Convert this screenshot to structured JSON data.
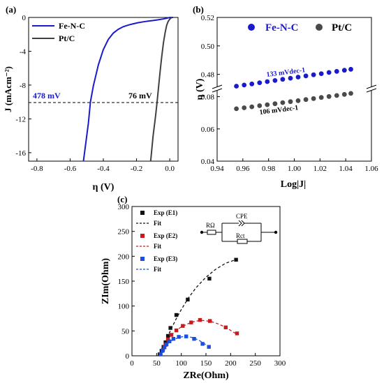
{
  "chart_data": [
    {
      "panel_label": "(a)",
      "type": "line",
      "xlabel": "η (V)",
      "ylabel": "J (mAcm⁻²)",
      "xlim": [
        -0.85,
        0.05
      ],
      "ylim": [
        -17,
        0
      ],
      "xticks": [
        "-0.8",
        "-0.6",
        "-0.4",
        "-0.2",
        "0.0"
      ],
      "xtick_values": [
        -0.8,
        -0.6,
        -0.4,
        -0.2,
        0.0
      ],
      "yticks": [
        "0",
        "-4",
        "-8",
        "-12",
        "-16"
      ],
      "ytick_values": [
        0,
        -4,
        -8,
        -12,
        -16
      ],
      "reference_line": {
        "y": -10,
        "style": "dashed"
      },
      "annotations": [
        {
          "text": "478 mV",
          "color": "#1a1acc"
        },
        {
          "text": "76 mV",
          "color": "#000000"
        }
      ],
      "legend_position": "top-left",
      "series": [
        {
          "name": "Fe-N-C",
          "color": "#1a1acc",
          "x": [
            -0.52,
            -0.49,
            -0.478,
            -0.46,
            -0.43,
            -0.4,
            -0.37,
            -0.34,
            -0.31,
            -0.28,
            -0.25,
            -0.22,
            -0.19,
            -0.16,
            -0.13,
            -0.1,
            -0.07,
            -0.04,
            -0.02,
            0.0,
            0.02
          ],
          "y": [
            -17,
            -12.5,
            -10,
            -8.1,
            -5.6,
            -3.8,
            -2.6,
            -1.85,
            -1.4,
            -1.1,
            -0.9,
            -0.75,
            -0.62,
            -0.52,
            -0.43,
            -0.36,
            -0.28,
            -0.18,
            -0.1,
            0.0,
            0.0
          ]
        },
        {
          "name": "Pt/C",
          "color": "#404040",
          "x": [
            -0.115,
            -0.1,
            -0.085,
            -0.076,
            -0.068,
            -0.058,
            -0.048,
            -0.038,
            -0.028,
            -0.018,
            -0.01,
            0.0,
            0.008,
            0.015
          ],
          "y": [
            -17,
            -14.0,
            -11.6,
            -10,
            -8.4,
            -6.4,
            -4.6,
            -3.0,
            -1.8,
            -0.9,
            -0.5,
            -0.2,
            -0.05,
            0.0
          ]
        }
      ]
    },
    {
      "panel_label": "(b)",
      "type": "scatter",
      "xlabel": "Log|J|",
      "ylabel": "η (V)",
      "xlim": [
        0.94,
        1.06
      ],
      "xticks": [
        "0.94",
        "0.96",
        "0.98",
        "1.00",
        "1.02",
        "1.04",
        "1.06"
      ],
      "xtick_values": [
        0.94,
        0.96,
        0.98,
        1.0,
        1.02,
        1.04,
        1.06
      ],
      "y_axis_break": true,
      "yticks_upper": [
        "0.48",
        "0.50",
        "0.52"
      ],
      "ytick_values_upper": [
        0.48,
        0.5,
        0.52
      ],
      "yticks_lower": [
        "0.04",
        "0.06",
        "0.08"
      ],
      "ytick_values_lower": [
        0.04,
        0.06,
        0.08
      ],
      "legend_position": "top",
      "series": [
        {
          "name": "Fe-N-C",
          "color": "#1a1acc",
          "slope_label": "133 mVdec-1",
          "x": [
            0.955,
            0.961,
            0.967,
            0.973,
            0.979,
            0.985,
            0.991,
            0.997,
            1.003,
            1.009,
            1.015,
            1.021,
            1.027,
            1.033,
            1.039,
            1.044
          ],
          "y": [
            0.4717,
            0.4725,
            0.4733,
            0.4741,
            0.4749,
            0.4757,
            0.4765,
            0.4773,
            0.4781,
            0.4789,
            0.4797,
            0.4805,
            0.4813,
            0.4821,
            0.4829,
            0.4836
          ]
        },
        {
          "name": "Pt/C",
          "color": "#4a4a4a",
          "slope_label": "106 mVdec-1",
          "x": [
            0.955,
            0.961,
            0.967,
            0.973,
            0.979,
            0.985,
            0.991,
            0.997,
            1.003,
            1.009,
            1.015,
            1.021,
            1.027,
            1.033,
            1.039,
            1.044
          ],
          "y": [
            0.0725,
            0.0731,
            0.0737,
            0.0744,
            0.075,
            0.0756,
            0.0763,
            0.0769,
            0.0775,
            0.0782,
            0.0788,
            0.0795,
            0.0801,
            0.0807,
            0.0814,
            0.082
          ]
        }
      ]
    },
    {
      "panel_label": "(c)",
      "type": "scatter",
      "xlabel": "ZRe(Ohm)",
      "ylabel": "ZIm(Ohm)",
      "xlim": [
        0,
        300
      ],
      "ylim": [
        0,
        300
      ],
      "xticks": [
        "0",
        "50",
        "100",
        "150",
        "200",
        "250",
        "300"
      ],
      "xtick_values": [
        0,
        50,
        100,
        150,
        200,
        250,
        300
      ],
      "yticks": [
        "0",
        "50",
        "100",
        "150",
        "200",
        "250",
        "300"
      ],
      "ytick_values": [
        0,
        50,
        100,
        150,
        200,
        250,
        300
      ],
      "legend_position": "top-left",
      "circuit_labels": {
        "r1": "RΩ",
        "cpe": "CPE",
        "r2": "Rct"
      },
      "series": [
        {
          "name": "Exp (E1)",
          "color": "#111111",
          "marker": "square",
          "x": [
            56,
            60,
            64,
            68,
            73,
            78,
            90,
            113,
            157,
            211
          ],
          "y": [
            3,
            10,
            18,
            27,
            40,
            56,
            82,
            113,
            155,
            193
          ],
          "fit_name": "Fit",
          "fit_x": [
            55,
            58,
            62,
            66,
            70,
            75,
            80,
            90,
            100,
            115,
            130,
            150,
            170,
            190,
            210
          ],
          "fit_y": [
            0,
            6,
            14,
            23,
            32,
            44,
            55,
            75,
            93,
            117,
            137,
            158,
            174,
            186,
            193
          ]
        },
        {
          "name": "Exp (E2)",
          "color": "#cc1a1a",
          "marker": "square",
          "x": [
            58,
            63,
            68,
            73,
            80,
            90,
            103,
            120,
            138,
            158,
            190,
            213
          ],
          "y": [
            3,
            12,
            22,
            33,
            42,
            51,
            60,
            67,
            72,
            70,
            57,
            45
          ],
          "fit_name": "Fit",
          "fit_x": [
            55,
            60,
            65,
            70,
            78,
            88,
            100,
            115,
            130,
            145,
            160,
            175,
            190,
            205,
            215
          ],
          "fit_y": [
            0,
            10,
            21,
            30,
            40,
            50,
            58,
            65,
            70,
            71,
            69,
            64,
            57,
            48,
            42
          ]
        },
        {
          "name": "Exp (E3)",
          "color": "#1a4fdd",
          "marker": "square",
          "x": [
            58,
            62,
            66,
            70,
            76,
            84,
            95,
            110,
            126,
            143,
            156
          ],
          "y": [
            3,
            10,
            17,
            23,
            29,
            34,
            38,
            39,
            34,
            24,
            18
          ],
          "fit_name": "Fit",
          "fit_x": [
            55,
            60,
            65,
            70,
            78,
            88,
            100,
            112,
            125,
            138,
            150,
            160
          ],
          "fit_y": [
            0,
            8,
            15,
            22,
            29,
            34,
            38,
            39,
            36,
            30,
            22,
            16
          ]
        }
      ]
    }
  ]
}
